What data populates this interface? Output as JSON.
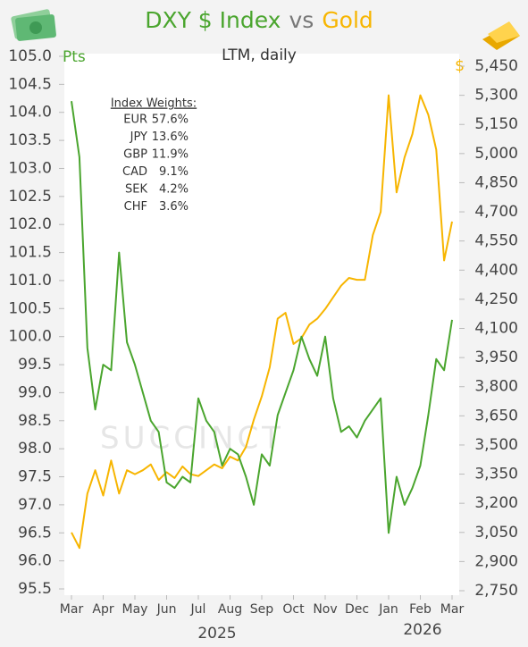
{
  "chart_data": {
    "type": "line",
    "title": [
      "DXY $ Index",
      "vs",
      "Gold"
    ],
    "subtitle": "LTM, daily",
    "y_label": "Pts",
    "y2_label": "$",
    "categories": [
      "Mar",
      null,
      null,
      null,
      "Apr",
      null,
      null,
      null,
      "May",
      null,
      null,
      null,
      "Jun",
      null,
      null,
      null,
      "Jul",
      null,
      null,
      null,
      "Aug",
      null,
      null,
      null,
      "Sep",
      null,
      null,
      null,
      "Oct",
      null,
      null,
      null,
      "Nov",
      null,
      null,
      null,
      "Dec",
      null,
      null,
      null,
      "Jan",
      null,
      null,
      null,
      "Feb",
      null,
      null,
      null,
      "Mar"
    ],
    "year_labels": [
      "2025",
      "2026"
    ],
    "series": [
      {
        "name": "DXY $ Index",
        "color": "#4aa52e",
        "axis": "y",
        "values": [
          104.2,
          103.2,
          99.8,
          98.7,
          99.5,
          99.4,
          101.5,
          99.9,
          99.5,
          99.0,
          98.5,
          98.3,
          97.4,
          97.3,
          97.5,
          97.4,
          98.9,
          98.5,
          98.3,
          97.7,
          98.0,
          97.9,
          97.5,
          97.0,
          97.9,
          97.7,
          98.6,
          99.0,
          99.4,
          100.0,
          99.6,
          99.3,
          100.0,
          98.9,
          98.3,
          98.4,
          98.2,
          98.5,
          98.7,
          98.9,
          96.5,
          97.5,
          97.0,
          97.3,
          97.7,
          98.6,
          99.6,
          99.4,
          100.3
        ]
      },
      {
        "name": "Gold",
        "color": "#f7b500",
        "axis": "y2",
        "values": [
          3050,
          2970,
          3250,
          3370,
          3240,
          3420,
          3250,
          3370,
          3350,
          3370,
          3400,
          3320,
          3360,
          3330,
          3390,
          3350,
          3340,
          3370,
          3400,
          3380,
          3440,
          3420,
          3490,
          3630,
          3750,
          3900,
          4150,
          4180,
          4020,
          4050,
          4120,
          4150,
          4200,
          4260,
          4320,
          4360,
          4350,
          4350,
          4580,
          4700,
          5300,
          4800,
          4980,
          5100,
          5300,
          5200,
          5020,
          4450,
          4650
        ]
      }
    ],
    "ylim": [
      95.5,
      105.0
    ],
    "yticks": [
      {
        "value": 105,
        "label": "105.0"
      },
      104.5,
      {
        "value": 104,
        "label": "104.0"
      },
      103.5,
      {
        "value": 103,
        "label": "103.0"
      },
      102.5,
      {
        "value": 102,
        "label": "102.0"
      },
      101.5,
      {
        "value": 101,
        "label": "101.0"
      },
      100.5,
      {
        "value": 100,
        "label": "100.0"
      },
      99.5,
      {
        "value": 99,
        "label": "99.0"
      },
      98.5,
      {
        "value": 98,
        "label": "98.0"
      },
      97.5,
      {
        "value": 97,
        "label": "97.0"
      },
      96.5,
      {
        "value": 96,
        "label": "96.0"
      },
      95.5
    ],
    "y2lim": [
      2750,
      5450
    ],
    "y2ticks": [
      {
        "value": 5450,
        "label": "5,450"
      },
      {
        "value": 5300,
        "label": "5,300"
      },
      {
        "value": 5150,
        "label": "5,150"
      },
      {
        "value": 5000,
        "label": "5,000"
      },
      {
        "value": 4850,
        "label": "4,850"
      },
      {
        "value": 4700,
        "label": "4,700"
      },
      {
        "value": 4550,
        "label": "4,550"
      },
      {
        "value": 4400,
        "label": "4,400"
      },
      {
        "value": 4250,
        "label": "4,250"
      },
      {
        "value": 4100,
        "label": "4,100"
      },
      {
        "value": 3950,
        "label": "3,950"
      },
      {
        "value": 3800,
        "label": "3,800"
      },
      {
        "value": 3650,
        "label": "3,650"
      },
      {
        "value": 3500,
        "label": "3,500"
      },
      {
        "value": 3350,
        "label": "3,350"
      },
      {
        "value": 3200,
        "label": "3,200"
      },
      {
        "value": 3050,
        "label": "3,050"
      },
      {
        "value": 2900,
        "label": "2,900"
      },
      {
        "value": 2750,
        "label": "2,750"
      }
    ],
    "weights": {
      "title": "Index Weights:",
      "rows": [
        [
          "EUR",
          "57.6%"
        ],
        [
          "JPY",
          "13.6%"
        ],
        [
          "GBP",
          "11.9%"
        ],
        [
          "CAD",
          "9.1%"
        ],
        [
          "SEK",
          "4.2%"
        ],
        [
          "CHF",
          "3.6%"
        ]
      ]
    },
    "watermark": "SUCCINCT"
  }
}
